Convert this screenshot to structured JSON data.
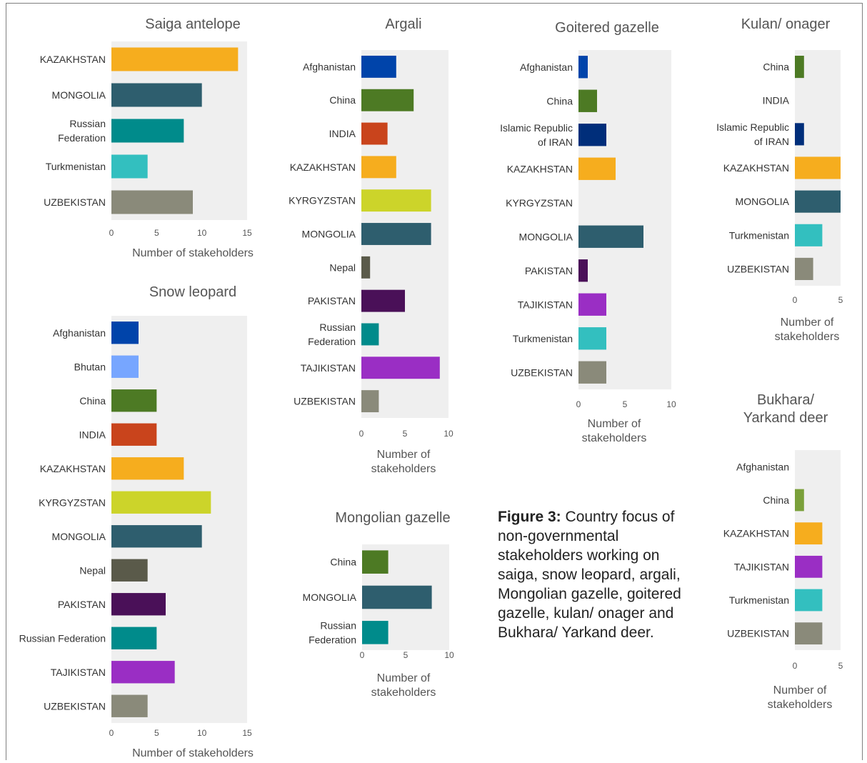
{
  "caption": {
    "label": "Figure 3:",
    "text": "Country focus of non-governmental stakeholders working on saiga, snow leopard, argali, Mongolian gazelle, goitered gazelle, kulan/ onager and Bukhara/ Yarkand deer."
  },
  "chart_data": [
    {
      "id": "saiga",
      "type": "bar",
      "orientation": "horizontal",
      "title": "Saiga antelope",
      "xlabel": "Number of stakeholders",
      "categories": [
        "KAZAKHSTAN",
        "MONGOLIA",
        "Russian Federation",
        "Turkmenistan",
        "UZBEKISTAN"
      ],
      "values": [
        14,
        10,
        8,
        4,
        9
      ],
      "colors": [
        "#f6ad1e",
        "#2e5e6e",
        "#008b8b",
        "#33bfbf",
        "#8a8a7a"
      ],
      "xlim": [
        0,
        15
      ],
      "ticks": [
        "0",
        "5",
        "10",
        "15"
      ]
    },
    {
      "id": "snowleopard",
      "type": "bar",
      "orientation": "horizontal",
      "title": "Snow leopard",
      "xlabel": "Number of stakeholders",
      "categories": [
        "Afghanistan",
        "Bhutan",
        "China",
        "INDIA",
        "KAZAKHSTAN",
        "KYRGYZSTAN",
        "MONGOLIA",
        "Nepal",
        "PAKISTAN",
        "Russian Federation",
        "TAJIKISTAN",
        "UZBEKISTAN"
      ],
      "values": [
        3,
        3,
        5,
        5,
        8,
        11,
        10,
        4,
        6,
        5,
        7,
        4
      ],
      "colors": [
        "#0044aa",
        "#77a6ff",
        "#4d7a24",
        "#c9441c",
        "#f6ad1e",
        "#ccd42a",
        "#2e5e6e",
        "#5a5a4a",
        "#4a1058",
        "#008b8b",
        "#9a2ec4",
        "#8a8a7a"
      ],
      "xlim": [
        0,
        15
      ],
      "ticks": [
        "0",
        "5",
        "10",
        "15"
      ]
    },
    {
      "id": "argali",
      "type": "bar",
      "orientation": "horizontal",
      "title": "Argali",
      "xlabel": "Number of stakeholders",
      "categories": [
        "Afghanistan",
        "China",
        "INDIA",
        "KAZAKHSTAN",
        "KYRGYZSTAN",
        "MONGOLIA",
        "Nepal",
        "PAKISTAN",
        "Russian Federation",
        "TAJIKISTAN",
        "UZBEKISTAN"
      ],
      "values": [
        4,
        6,
        3,
        4,
        8,
        8,
        1,
        5,
        2,
        9,
        2
      ],
      "colors": [
        "#0044aa",
        "#4d7a24",
        "#c9441c",
        "#f6ad1e",
        "#ccd42a",
        "#2e5e6e",
        "#5a5a4a",
        "#4a1058",
        "#008b8b",
        "#9a2ec4",
        "#8a8a7a"
      ],
      "xlim": [
        0,
        10
      ],
      "ticks": [
        "0",
        "5",
        "10"
      ]
    },
    {
      "id": "mongoliangazelle",
      "type": "bar",
      "orientation": "horizontal",
      "title": "Mongolian gazelle",
      "xlabel": "Number of stakeholders",
      "categories": [
        "China",
        "MONGOLIA",
        "Russian Federation"
      ],
      "values": [
        3,
        8,
        3
      ],
      "colors": [
        "#4d7a24",
        "#2e5e6e",
        "#008b8b"
      ],
      "xlim": [
        0,
        10
      ],
      "ticks": [
        "0",
        "5",
        "10"
      ]
    },
    {
      "id": "goiteredgazelle",
      "type": "bar",
      "orientation": "horizontal",
      "title": "Goitered gazelle",
      "xlabel": "Number of stakeholders",
      "categories": [
        "Afghanistan",
        "China",
        "Islamic Republic of IRAN",
        "KAZAKHSTAN",
        "KYRGYZSTAN",
        "MONGOLIA",
        "PAKISTAN",
        "TAJIKISTAN",
        "Turkmenistan",
        "UZBEKISTAN"
      ],
      "values": [
        1,
        2,
        3,
        4,
        0,
        7,
        1,
        3,
        3,
        3
      ],
      "colors": [
        "#0044aa",
        "#4d7a24",
        "#002e7a",
        "#f6ad1e",
        "#ccd42a",
        "#2e5e6e",
        "#4a1058",
        "#9a2ec4",
        "#33bfbf",
        "#8a8a7a"
      ],
      "xlim": [
        0,
        10
      ],
      "ticks": [
        "0",
        "5",
        "10"
      ]
    },
    {
      "id": "kulan",
      "type": "bar",
      "orientation": "horizontal",
      "title": "Kulan/ onager",
      "xlabel": "Number of stakeholders",
      "categories": [
        "China",
        "INDIA",
        "Islamic Republic of IRAN",
        "KAZAKHSTAN",
        "MONGOLIA",
        "Turkmenistan",
        "UZBEKISTAN"
      ],
      "values": [
        1,
        0,
        1,
        5,
        5,
        3,
        2
      ],
      "colors": [
        "#4d7a24",
        "#c9441c",
        "#002e7a",
        "#f6ad1e",
        "#2e5e6e",
        "#33bfbf",
        "#8a8a7a"
      ],
      "xlim": [
        0,
        5
      ],
      "ticks": [
        "0",
        "5"
      ]
    },
    {
      "id": "bukhara",
      "type": "bar",
      "orientation": "horizontal",
      "title": "Bukhara/ Yarkand deer",
      "xlabel": "Number of stakeholders",
      "categories": [
        "Afghanistan",
        "China",
        "KAZAKHSTAN",
        "TAJIKISTAN",
        "Turkmenistan",
        "UZBEKISTAN"
      ],
      "values": [
        0,
        1,
        3,
        3,
        3,
        3
      ],
      "colors": [
        "#0044aa",
        "#7aa03a",
        "#f6ad1e",
        "#9a2ec4",
        "#33bfbf",
        "#8a8a7a"
      ],
      "xlim": [
        0,
        5
      ],
      "ticks": [
        "0",
        "5"
      ]
    }
  ]
}
